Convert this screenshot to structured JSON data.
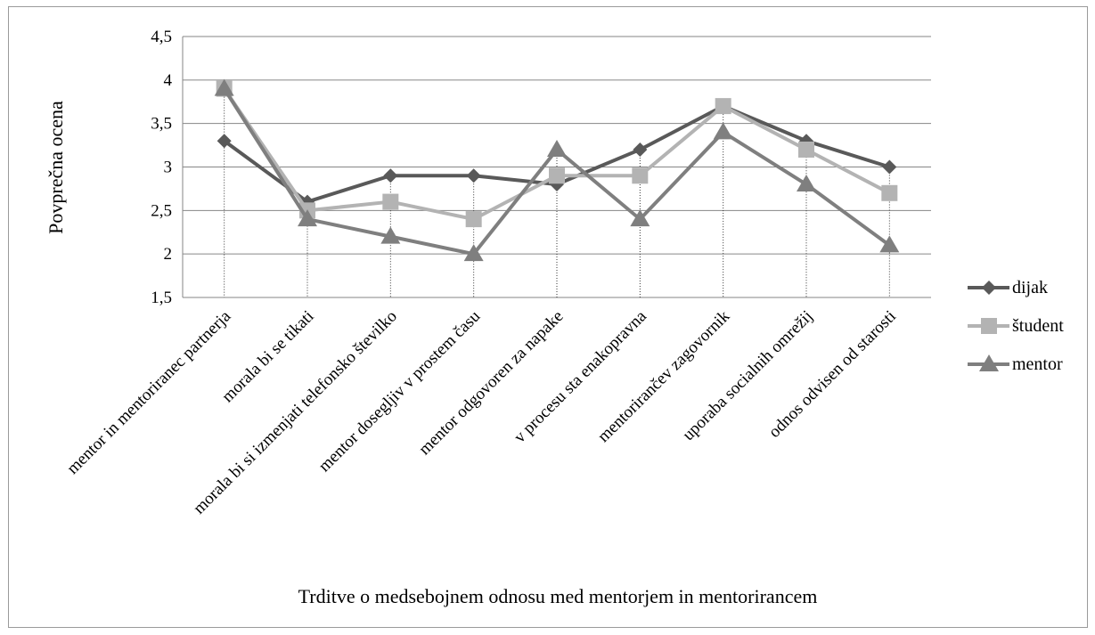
{
  "chart_data": {
    "type": "line",
    "title": "",
    "xlabel": "Trditve o medsebojnem odnosu med mentorjem in mentorirancem",
    "ylabel": "Povprečna ocena",
    "categories": [
      "mentor in mentoriranec partnerja",
      "morala bi se tikati",
      "morala bi si izmenjati telefonsko številko",
      "mentor dosegljiv  v prostem času",
      "mentor odgovoren za napake",
      "v procesu sta enakopravna",
      "mentorirančev zagovornik",
      "uporaba socialnih omrežij",
      "odnos odvisen od starosti"
    ],
    "ylim": [
      1.5,
      4.5
    ],
    "yticks": [
      1.5,
      2,
      2.5,
      3,
      3.5,
      4,
      4.5
    ],
    "ytick_labels": [
      "1,5",
      "2",
      "2,5",
      "3",
      "3,5",
      "4",
      "4,5"
    ],
    "grid": true,
    "legend_position": "right",
    "series": [
      {
        "name": "dijak",
        "marker": "diamond",
        "color": "#595959",
        "values": [
          3.3,
          2.6,
          2.9,
          2.9,
          2.8,
          3.2,
          3.7,
          3.3,
          3.0
        ]
      },
      {
        "name": "študent",
        "marker": "square",
        "color": "#b3b3b3",
        "values": [
          3.9,
          2.5,
          2.6,
          2.4,
          2.9,
          2.9,
          3.7,
          3.2,
          2.7
        ]
      },
      {
        "name": "mentor",
        "marker": "triangle",
        "color": "#7f7f7f",
        "values": [
          3.9,
          2.4,
          2.2,
          2.0,
          3.2,
          2.4,
          3.4,
          2.8,
          2.1
        ]
      }
    ]
  }
}
